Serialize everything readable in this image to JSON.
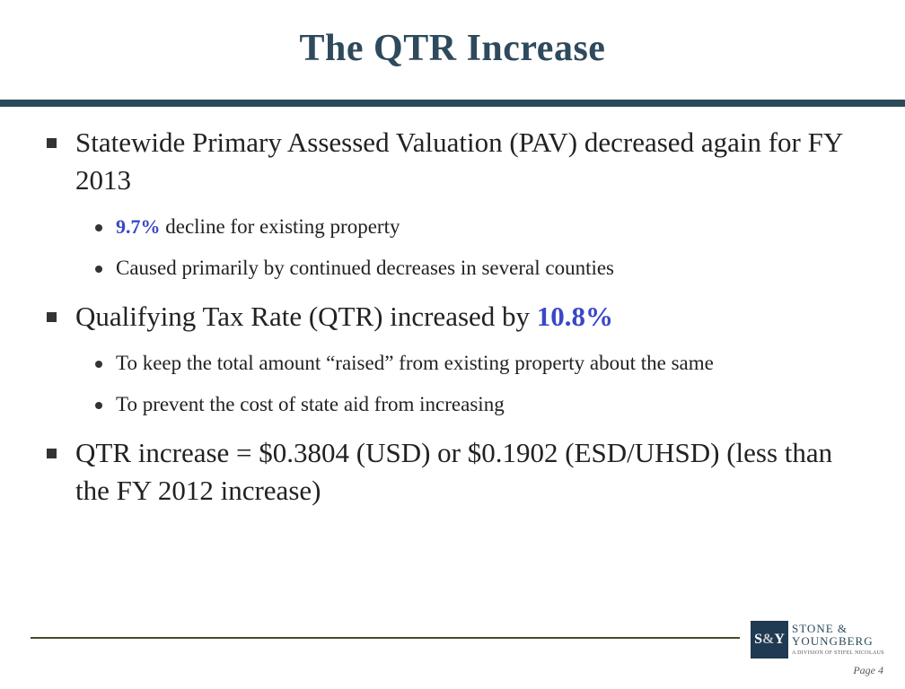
{
  "title": "The QTR Increase",
  "bullets": [
    {
      "text": "Statewide Primary Assessed Valuation (PAV) decreased again for FY 2013",
      "subs": [
        {
          "accent": "9.7%",
          "text": " decline for existing property"
        },
        {
          "accent": "",
          "text": "Caused primarily by continued decreases in several counties"
        }
      ]
    },
    {
      "text": "Qualifying Tax Rate (QTR) increased by ",
      "accent": "10.8%",
      "subs": [
        {
          "accent": "",
          "text": "To keep the total amount “raised” from existing property about the same"
        },
        {
          "accent": "",
          "text": "To prevent the cost of state aid from increasing"
        }
      ]
    },
    {
      "text": "QTR increase = $0.3804 (USD) or $0.1902 (ESD/UHSD) (less than the FY 2012 increase)",
      "subs": []
    }
  ],
  "logo": {
    "monogram_left": "S",
    "monogram_amp": "&",
    "monogram_right": "Y",
    "line1": "STONE &",
    "line2": "YOUNGBERG",
    "sub": "A DIVISION OF STIFEL NICOLAUS"
  },
  "page_label": "Page 4",
  "colors": {
    "title": "#2e4a5c",
    "rule": "#2b4a5a",
    "accent": "#3a47c8"
  }
}
